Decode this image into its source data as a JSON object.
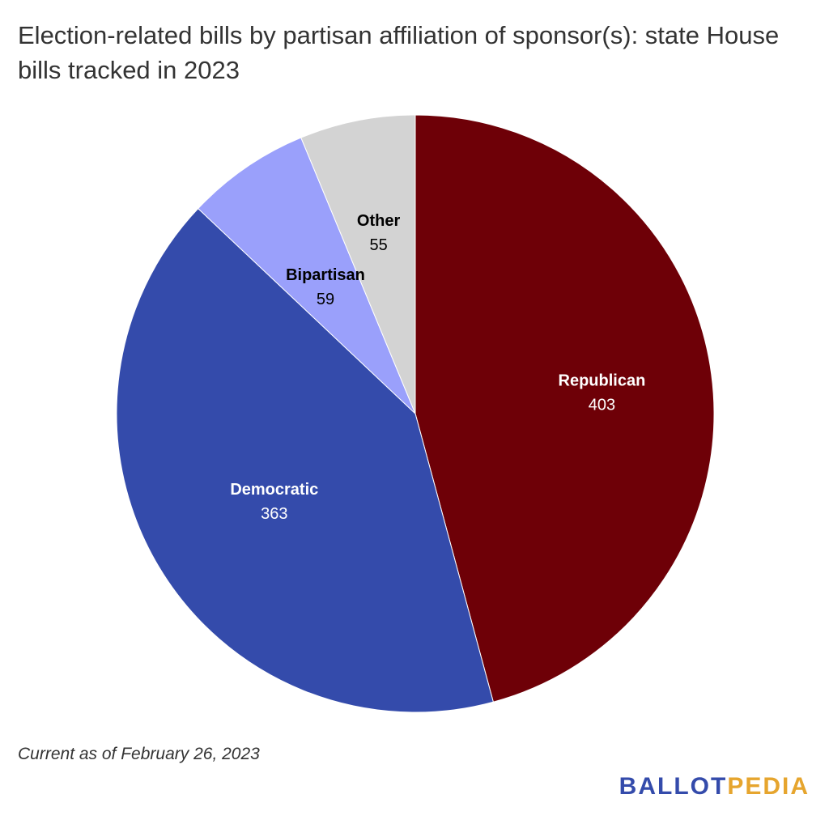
{
  "chart_data": {
    "type": "pie",
    "title": "Election-related bills by partisan affiliation of sponsor(s): state House bills tracked in 2023",
    "slices": [
      {
        "label": "Republican",
        "value": 403,
        "color": "#6e0007",
        "text_color": "#ffffff"
      },
      {
        "label": "Democratic",
        "value": 363,
        "color": "#344bab",
        "text_color": "#ffffff"
      },
      {
        "label": "Bipartisan",
        "value": 59,
        "color": "#9aa0fb",
        "text_color": "#000000"
      },
      {
        "label": "Other",
        "value": 55,
        "color": "#d3d3d3",
        "text_color": "#000000"
      }
    ],
    "start_angle": "top",
    "direction": "clockwise"
  },
  "footnote": "Current as of February 26, 2023",
  "logo": {
    "part1": "BALLOT",
    "part2": "PEDIA",
    "color1": "#344bab",
    "color2": "#e6a52e"
  }
}
